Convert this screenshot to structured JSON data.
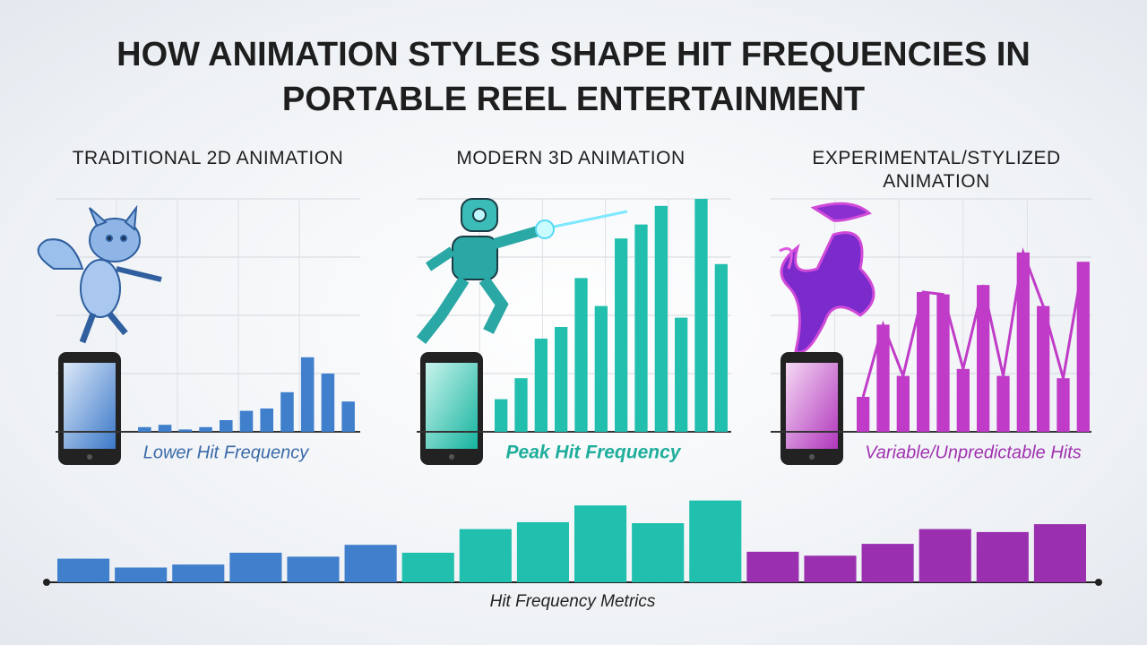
{
  "title": "HOW ANIMATION STYLES SHAPE HIT FREQUENCIES IN PORTABLE REEL ENTERTAINMENT",
  "chart_data": [
    {
      "type": "bar",
      "title": "TRADITIONAL 2D ANIMATION",
      "caption": "Lower Hit Frequency",
      "color": "#3f7fcc",
      "values": [
        2,
        3,
        1,
        2,
        5,
        9,
        10,
        17,
        32,
        25,
        13
      ],
      "ylim": [
        0,
        100
      ],
      "yticks": [
        0,
        25,
        50,
        75,
        100
      ],
      "grid": true
    },
    {
      "type": "bar",
      "title": "MODERN 3D ANIMATION",
      "caption": "Peak Hit Frequency",
      "color": "#22bfae",
      "values": [
        14,
        23,
        40,
        45,
        66,
        54,
        83,
        89,
        97,
        49,
        100,
        72
      ],
      "ylim": [
        0,
        100
      ],
      "yticks": [
        0,
        25,
        50,
        75,
        100
      ],
      "grid": true
    },
    {
      "type": "bar",
      "title": "EXPERIMENTAL/STYLIZED ANIMATION",
      "caption": "Variable/Unpredictable Hits",
      "color": "#c03cc8",
      "values": [
        15,
        46,
        24,
        60,
        59,
        27,
        63,
        24,
        77,
        54,
        23,
        73
      ],
      "ylim": [
        0,
        100
      ],
      "yticks": [
        0,
        25,
        50,
        75,
        100
      ],
      "grid": true
    },
    {
      "type": "bar",
      "xlabel": "Hit Frequency Metrics",
      "ylim": [
        0,
        100
      ],
      "series": [
        {
          "color": "#3f7fcc",
          "values": [
            24,
            15,
            18,
            30,
            26,
            38
          ]
        },
        {
          "color": "#20bfae",
          "values": [
            30,
            54,
            61,
            78,
            60,
            83
          ]
        },
        {
          "color": "#9a30b0",
          "values": [
            31,
            27,
            39,
            54,
            51,
            59
          ]
        }
      ]
    }
  ]
}
